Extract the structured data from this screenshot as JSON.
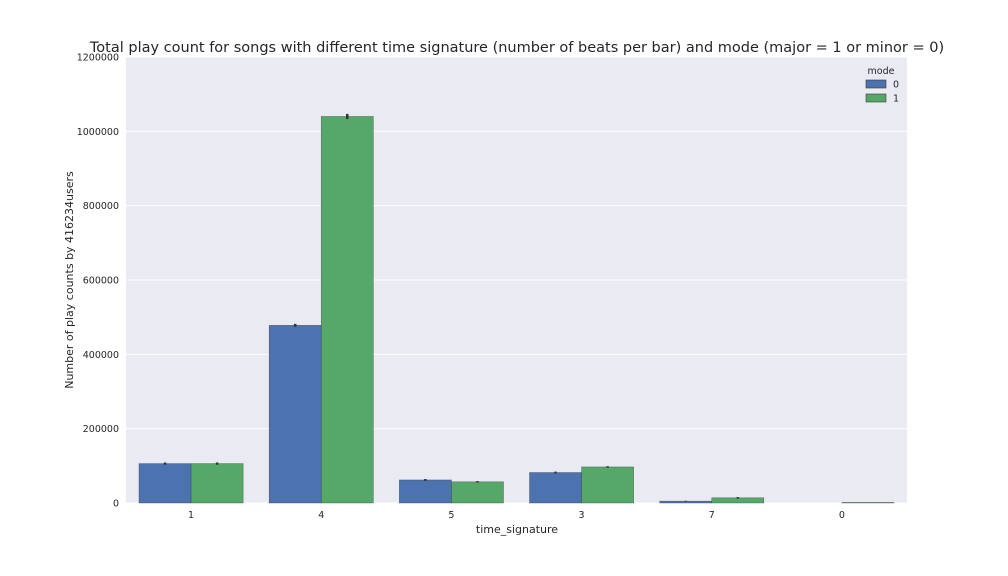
{
  "chart_data": {
    "type": "bar",
    "title": "Total play count for songs with different time signature (number of beats per bar) and mode (major = 1 or minor = 0)",
    "xlabel": "time_signature",
    "ylabel": "Number of play counts by 416234users",
    "categories": [
      "1",
      "4",
      "5",
      "3",
      "7",
      "0"
    ],
    "ylim": [
      0,
      1200000
    ],
    "yticks": [
      0,
      200000,
      400000,
      600000,
      800000,
      1000000,
      1200000
    ],
    "grid": true,
    "legend": {
      "title": "mode",
      "placement": "top-right"
    },
    "series": [
      {
        "name": "0",
        "color": "#4c72b0",
        "values": [
          106000,
          478000,
          62000,
          82000,
          5000,
          0
        ],
        "err": [
          3000,
          4000,
          2500,
          2500,
          1000,
          0
        ]
      },
      {
        "name": "1",
        "color": "#55a868",
        "values": [
          106000,
          1040000,
          57000,
          97000,
          14000,
          1500
        ],
        "err": [
          3000,
          7000,
          2000,
          2000,
          2000,
          0
        ]
      }
    ]
  }
}
